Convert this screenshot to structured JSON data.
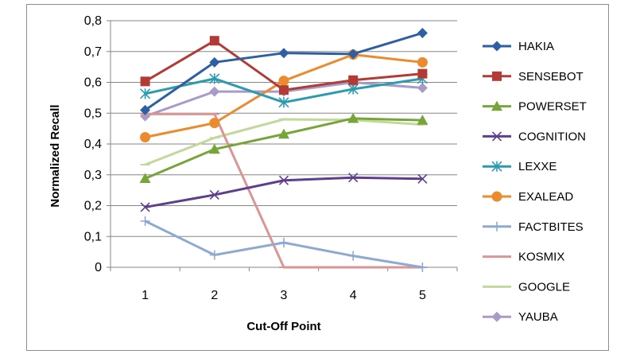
{
  "chart_data": {
    "type": "line",
    "title": "",
    "xlabel": "Cut-Off Point",
    "ylabel": "Normalized Recall",
    "x": [
      1,
      2,
      3,
      4,
      5
    ],
    "ylim": [
      0,
      0.8
    ],
    "yticks": [
      "0",
      "0,1",
      "0,2",
      "0,3",
      "0,4",
      "0,5",
      "0,6",
      "0,7",
      "0,8"
    ],
    "grid": true,
    "legend": "right",
    "series": [
      {
        "name": "HAKIA",
        "color": "#2e5fa3",
        "marker": "diamond",
        "values": [
          0.51,
          0.665,
          0.695,
          0.692,
          0.76
        ]
      },
      {
        "name": "SENSEBOT",
        "color": "#b23b35",
        "marker": "square",
        "values": [
          0.603,
          0.735,
          0.575,
          0.607,
          0.628
        ]
      },
      {
        "name": "POWERSET",
        "color": "#78a53a",
        "marker": "triangle",
        "values": [
          0.288,
          0.383,
          0.432,
          0.483,
          0.477
        ]
      },
      {
        "name": "COGNITION",
        "color": "#5e3f8c",
        "marker": "x",
        "values": [
          0.195,
          0.235,
          0.282,
          0.291,
          0.287
        ]
      },
      {
        "name": "LEXXE",
        "color": "#2c9bb0",
        "marker": "star",
        "values": [
          0.563,
          0.612,
          0.535,
          0.578,
          0.612
        ]
      },
      {
        "name": "EXALEAD",
        "color": "#ec8b2e",
        "marker": "circle",
        "values": [
          0.422,
          0.468,
          0.605,
          0.69,
          0.665
        ]
      },
      {
        "name": "FACTBITES",
        "color": "#8ea9d2",
        "marker": "plus",
        "values": [
          0.15,
          0.04,
          0.08,
          0.037,
          0.0
        ]
      },
      {
        "name": "KOSMIX",
        "color": "#d99694",
        "marker": "dash",
        "values": [
          0.497,
          0.497,
          0.0,
          0.0,
          0.0
        ]
      },
      {
        "name": "GOOGLE",
        "color": "#c3d89b",
        "marker": "dash",
        "values": [
          0.333,
          0.42,
          0.48,
          0.478,
          0.463
        ]
      },
      {
        "name": "YAUBA",
        "color": "#a99bc8",
        "marker": "diamond",
        "values": [
          0.49,
          0.57,
          0.57,
          0.6,
          0.582
        ]
      }
    ]
  }
}
